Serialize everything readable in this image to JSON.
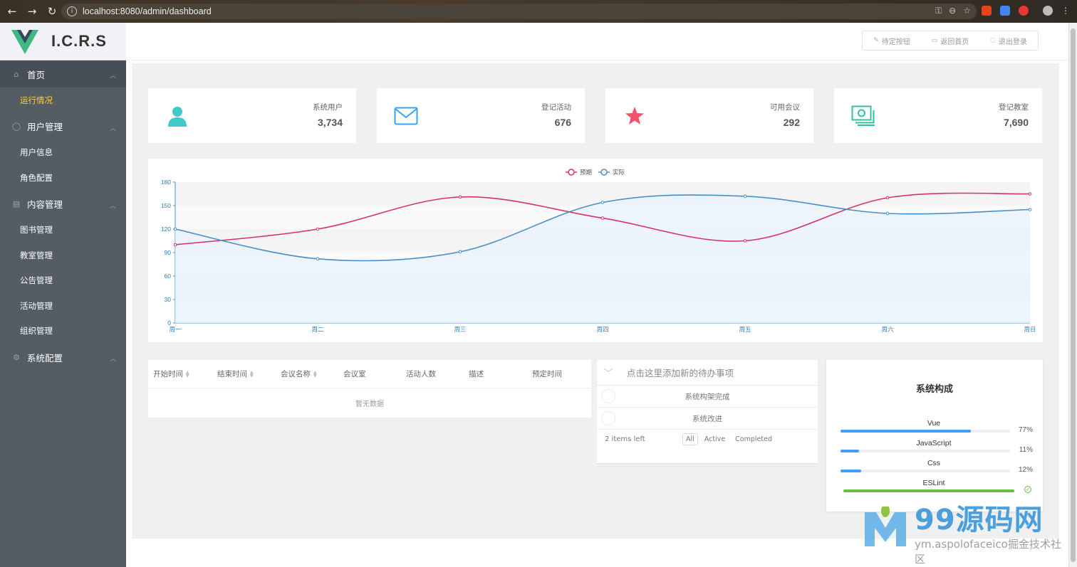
{
  "browser": {
    "url": "localhost:8080/admin/dashboard"
  },
  "app": {
    "brand": "I.C.R.S"
  },
  "sidebar": {
    "groups": [
      {
        "label": "首页",
        "icon": "home-icon",
        "items": [
          {
            "label": "运行情况",
            "active": true
          }
        ]
      },
      {
        "label": "用户管理",
        "icon": "user-icon",
        "items": [
          {
            "label": "用户信息"
          },
          {
            "label": "角色配置"
          }
        ]
      },
      {
        "label": "内容管理",
        "icon": "document-icon",
        "items": [
          {
            "label": "图书管理"
          },
          {
            "label": "教室管理"
          },
          {
            "label": "公告管理"
          },
          {
            "label": "活动管理"
          },
          {
            "label": "组织管理"
          }
        ]
      },
      {
        "label": "系统配置",
        "icon": "gear-icon",
        "items": []
      }
    ]
  },
  "header": {
    "buttons": [
      {
        "label": "待定按钮",
        "icon": "edit-icon"
      },
      {
        "label": "返回首页",
        "icon": "monitor-icon"
      },
      {
        "label": "退出登录",
        "icon": "power-icon"
      }
    ]
  },
  "stats": [
    {
      "label": "系统用户",
      "value": "3,734",
      "icon": "user-icon",
      "color": "#40c9c6"
    },
    {
      "label": "登记活动",
      "value": "676",
      "icon": "mail-icon",
      "color": "#36a3f7"
    },
    {
      "label": "可用会议",
      "value": "292",
      "icon": "star-icon",
      "color": "#f4516c"
    },
    {
      "label": "登记教室",
      "value": "7,690",
      "icon": "money-icon",
      "color": "#34bfa3"
    }
  ],
  "chart_data": {
    "type": "line",
    "categories": [
      "周一",
      "周二",
      "周三",
      "周四",
      "周五",
      "周六",
      "周日"
    ],
    "series": [
      {
        "name": "预期",
        "values": [
          100,
          120,
          161,
          134,
          105,
          160,
          165
        ],
        "color": "#d6336c"
      },
      {
        "name": "实际",
        "values": [
          120,
          82,
          91,
          154,
          162,
          140,
          145
        ],
        "color": "#4a90c8",
        "area": true
      }
    ],
    "yticks": [
      0,
      30,
      60,
      90,
      120,
      150,
      180
    ],
    "ylim": [
      0,
      180
    ],
    "legend": "top-center",
    "smooth": true
  },
  "table": {
    "columns": [
      "开始时间",
      "结束时间",
      "会议名称",
      "会议室",
      "活动人数",
      "描述",
      "预定时间"
    ],
    "sortable": [
      true,
      true,
      true,
      false,
      false,
      false,
      false
    ],
    "empty_text": "暂无数据"
  },
  "todo": {
    "placeholder": "点击这里添加新的待办事项",
    "items": [
      "系统构架完成",
      "系统改进"
    ],
    "left": "2 items left",
    "filters": [
      "All",
      "Active",
      "Completed"
    ],
    "selected_filter": "All"
  },
  "tech": {
    "title": "系统构成",
    "items": [
      {
        "name": "Vue",
        "percent": 77,
        "label": "77%",
        "color": "#409eff"
      },
      {
        "name": "JavaScript",
        "percent": 11,
        "label": "11%",
        "color": "#409eff"
      },
      {
        "name": "Css",
        "percent": 12,
        "label": "12%",
        "color": "#409eff"
      },
      {
        "name": "ESLint",
        "percent": 100,
        "label": "",
        "color": "#67c23a",
        "status": "success"
      }
    ]
  },
  "watermark": {
    "brand": "99源码网",
    "sub": "ym.aspolofaceico掘金技术社区"
  }
}
